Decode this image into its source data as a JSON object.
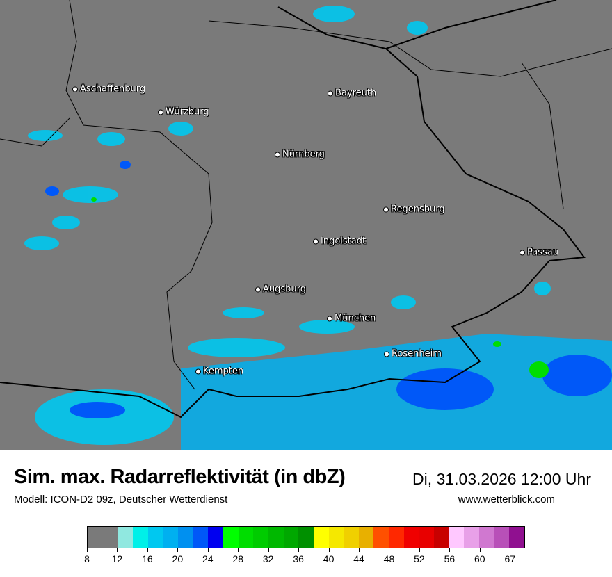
{
  "header": {
    "title": "Sim. max. Radarreflektivität (in dbZ)",
    "datetime": "Di, 31.03.2026 12:00 Uhr",
    "model": "Modell: ICON-D2 09z, Deutscher Wetterdienst",
    "website": "www.wetterblick.com"
  },
  "map": {
    "background_color": "#7a7a7a",
    "cities": [
      {
        "name": "Aschaffenburg"
      },
      {
        "name": "Würzburg"
      },
      {
        "name": "Bayreuth"
      },
      {
        "name": "Nürnberg"
      },
      {
        "name": "Regensburg"
      },
      {
        "name": "Ingolstadt"
      },
      {
        "name": "Passau"
      },
      {
        "name": "Augsburg"
      },
      {
        "name": "München"
      },
      {
        "name": "Rosenheim"
      },
      {
        "name": "Kempten"
      }
    ]
  },
  "legend": {
    "unit": "dbZ",
    "colors": [
      "#7a7a7a",
      "#90e8e0",
      "#00f0e8",
      "#00c8f0",
      "#00b0f0",
      "#0090f0",
      "#0058f8",
      "#0000f0",
      "#00ff00",
      "#00dd00",
      "#00cc00",
      "#00b800",
      "#00a800",
      "#009000",
      "#ffff00",
      "#f5e800",
      "#f0d000",
      "#e8b000",
      "#ff5000",
      "#ff2800",
      "#f00000",
      "#e80000",
      "#c80000",
      "#ffc8ff",
      "#e8a0e8",
      "#d078d0",
      "#b850b8",
      "#901090"
    ],
    "tick_labels": [
      "8",
      "12",
      "16",
      "20",
      "24",
      "28",
      "32",
      "36",
      "40",
      "44",
      "48",
      "52",
      "56",
      "60",
      "67"
    ]
  }
}
